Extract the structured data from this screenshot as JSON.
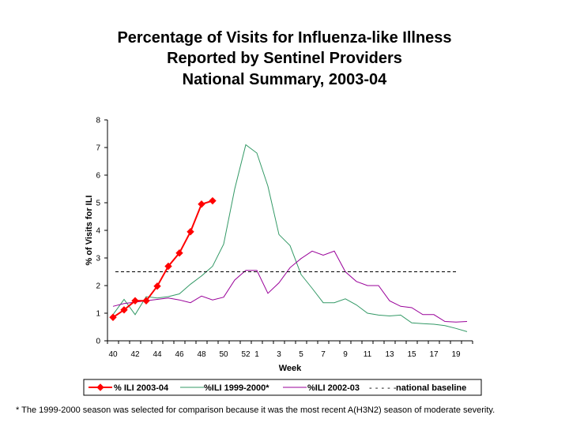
{
  "title_lines": [
    "Percentage of Visits for Influenza-like Illness",
    "Reported by Sentinel Providers",
    "National Summary, 2003-04"
  ],
  "footnote": "* The 1999-2000 season was selected for comparison because it was the most recent A(H3N2) season of moderate severity.",
  "chart_data": {
    "type": "line",
    "xlabel": "Week",
    "ylabel": "% of Visits for ILI",
    "ylim": [
      0,
      8
    ],
    "yticks": [
      0,
      1,
      2,
      3,
      4,
      5,
      6,
      7,
      8
    ],
    "weeks": [
      40,
      41,
      42,
      43,
      44,
      45,
      46,
      47,
      48,
      49,
      50,
      51,
      52,
      1,
      2,
      3,
      4,
      5,
      6,
      7,
      8,
      9,
      10,
      11,
      12,
      13,
      14,
      15,
      16,
      17,
      18,
      19,
      20
    ],
    "x_tick_labels": [
      "40",
      "42",
      "44",
      "46",
      "48",
      "50",
      "52",
      "1",
      "3",
      "5",
      "7",
      "9",
      "11",
      "13",
      "15",
      "17",
      "19"
    ],
    "legend_position": "bottom",
    "series": [
      {
        "name": "% ILI 2003-04",
        "color": "#ff0000",
        "marker": "diamond",
        "values": [
          0.85,
          1.12,
          1.45,
          1.45,
          1.98,
          2.7,
          3.18,
          3.95,
          4.95,
          5.07
        ]
      },
      {
        "name": "%ILI 1999-2000*",
        "color": "#339966",
        "marker": "none",
        "values": [
          0.95,
          1.5,
          0.95,
          1.6,
          1.55,
          1.6,
          1.7,
          2.05,
          2.35,
          2.7,
          3.5,
          5.5,
          7.1,
          6.8,
          5.6,
          3.85,
          3.45,
          2.4,
          1.9,
          1.38,
          1.38,
          1.52,
          1.3,
          1.0,
          0.93,
          0.9,
          0.93,
          0.65,
          0.62,
          0.6,
          0.55,
          0.45,
          0.33
        ]
      },
      {
        "name": "%ILI 2002-03",
        "color": "#990099",
        "marker": "none",
        "values": [
          1.25,
          1.35,
          1.4,
          1.45,
          1.5,
          1.55,
          1.48,
          1.38,
          1.62,
          1.48,
          1.58,
          2.2,
          2.55,
          2.55,
          1.72,
          2.1,
          2.65,
          2.98,
          3.25,
          3.1,
          3.25,
          2.5,
          2.15,
          2.0,
          2.0,
          1.45,
          1.25,
          1.2,
          0.95,
          0.95,
          0.7,
          0.68,
          0.7
        ]
      },
      {
        "name": "national baseline",
        "color": "#000000",
        "dashed": true,
        "value": 2.5
      }
    ]
  }
}
